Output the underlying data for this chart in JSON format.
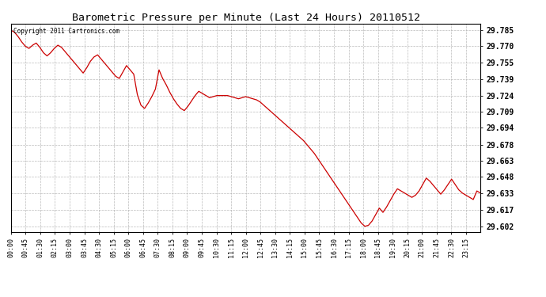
{
  "title": "Barometric Pressure per Minute (Last 24 Hours) 20110512",
  "copyright_text": "Copyright 2011 Cartronics.com",
  "line_color": "#cc0000",
  "bg_color": "#ffffff",
  "plot_bg_color": "#ffffff",
  "grid_color": "#aaaaaa",
  "yticks": [
    29.602,
    29.617,
    29.633,
    29.648,
    29.663,
    29.678,
    29.694,
    29.709,
    29.724,
    29.739,
    29.755,
    29.77,
    29.785
  ],
  "ylim": [
    29.597,
    29.791
  ],
  "xtick_labels": [
    "00:00",
    "00:45",
    "01:30",
    "02:15",
    "03:00",
    "03:45",
    "04:30",
    "05:15",
    "06:00",
    "06:45",
    "07:30",
    "08:15",
    "09:00",
    "09:45",
    "10:30",
    "11:15",
    "12:00",
    "12:45",
    "13:30",
    "14:15",
    "15:00",
    "15:45",
    "16:30",
    "17:15",
    "18:00",
    "18:45",
    "19:30",
    "20:15",
    "21:00",
    "21:45",
    "22:30",
    "23:15"
  ],
  "pressure_data": [
    29.785,
    29.783,
    29.779,
    29.774,
    29.77,
    29.768,
    29.771,
    29.773,
    29.769,
    29.764,
    29.761,
    29.764,
    29.768,
    29.771,
    29.769,
    29.765,
    29.761,
    29.757,
    29.753,
    29.749,
    29.745,
    29.75,
    29.756,
    29.76,
    29.762,
    29.758,
    29.754,
    29.75,
    29.746,
    29.742,
    29.74,
    29.746,
    29.752,
    29.748,
    29.744,
    29.725,
    29.715,
    29.712,
    29.717,
    29.723,
    29.73,
    29.748,
    29.74,
    29.734,
    29.727,
    29.721,
    29.716,
    29.712,
    29.71,
    29.714,
    29.719,
    29.724,
    29.728,
    29.726,
    29.724,
    29.722,
    29.723,
    29.724,
    29.724,
    29.724,
    29.724,
    29.723,
    29.722,
    29.721,
    29.722,
    29.723,
    29.722,
    29.721,
    29.72,
    29.718,
    29.715,
    29.712,
    29.709,
    29.706,
    29.703,
    29.7,
    29.697,
    29.694,
    29.691,
    29.688,
    29.685,
    29.682,
    29.678,
    29.674,
    29.67,
    29.665,
    29.66,
    29.655,
    29.65,
    29.645,
    29.64,
    29.635,
    29.63,
    29.625,
    29.62,
    29.615,
    29.61,
    29.605,
    29.602,
    29.603,
    29.607,
    29.613,
    29.619,
    29.615,
    29.62,
    29.626,
    29.632,
    29.637,
    29.635,
    29.633,
    29.631,
    29.629,
    29.631,
    29.635,
    29.641,
    29.647,
    29.644,
    29.64,
    29.636,
    29.632,
    29.636,
    29.641,
    29.646,
    29.641,
    29.636,
    29.633,
    29.631,
    29.629,
    29.627,
    29.635,
    29.633
  ]
}
